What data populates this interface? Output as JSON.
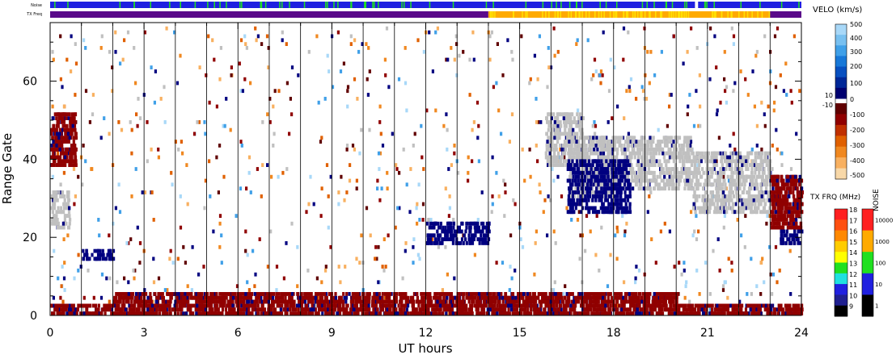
{
  "chart_data": {
    "type": "heatmap",
    "title": "",
    "xlabel": "UT hours",
    "ylabel": "Range Gate",
    "xlim": [
      0,
      24
    ],
    "ylim": [
      0,
      75
    ],
    "x_ticks": [
      "0",
      "3",
      "6",
      "9",
      "12",
      "15",
      "18",
      "21",
      "24"
    ],
    "y_ticks": [
      "0",
      "20",
      "40",
      "60"
    ],
    "top_bars": {
      "noise_label": "Noise",
      "txfreq_label": "TX Freq",
      "txfreq_segments": [
        {
          "start": 0,
          "end": 14,
          "freq_mhz": 10
        },
        {
          "start": 14,
          "end": 23,
          "freq_mhz": 14.5
        },
        {
          "start": 23,
          "end": 24,
          "freq_mhz": 10
        }
      ],
      "noise_level": "10",
      "noise_gaps": [
        20.6,
        20.7
      ]
    },
    "velocity_colorbar": {
      "label": "VELO (km/s)",
      "ticks_pos": [
        "500",
        "400",
        "300",
        "200",
        "100",
        "10",
        "0"
      ],
      "ticks_neg": [
        "-10",
        "-100",
        "-200",
        "-300",
        "-400",
        "-500"
      ],
      "colors_pos": [
        "#a8d8f8",
        "#78c0f0",
        "#40a0e8",
        "#1878d8",
        "#0850c0",
        "#002898",
        "#000070"
      ],
      "colors_neg": [
        "#600000",
        "#900000",
        "#c03000",
        "#e06000",
        "#f08820",
        "#f8b060",
        "#f8d8a8"
      ]
    },
    "txfreq_colorbar": {
      "label": "TX FRQ (MHz)",
      "ticks": [
        "18",
        "17",
        "16",
        "15",
        "14",
        "13",
        "12",
        "11",
        "10",
        "9"
      ],
      "colors": [
        "#ff2020",
        "#ff5010",
        "#ff8800",
        "#ffcc00",
        "#ffff00",
        "#20e020",
        "#20e0e0",
        "#2020e0",
        "#202090",
        "#000000"
      ]
    },
    "noise_colorbar": {
      "label": "NOISE",
      "ticks": [
        "10000",
        "1000",
        "100",
        "10",
        "1"
      ],
      "colors": [
        "#ff2020",
        "#ffaa00",
        "#20e020",
        "#2020e0",
        "#000000"
      ]
    },
    "series": [
      {
        "kind": "ground_scatter",
        "color": "#c0c0c0",
        "regions": [
          {
            "x": [
              0.0,
              0.6
            ],
            "y": [
              22,
              32
            ]
          },
          {
            "x": [
              15.8,
              17.0
            ],
            "y": [
              38,
              52
            ]
          },
          {
            "x": [
              16.5,
              18.0
            ],
            "y": [
              30,
              46
            ]
          },
          {
            "x": [
              17.5,
              20.5
            ],
            "y": [
              32,
              46
            ]
          },
          {
            "x": [
              20.5,
              23.0
            ],
            "y": [
              26,
              42
            ]
          }
        ]
      },
      {
        "kind": "negative_velocity",
        "color": "#900000",
        "regions": [
          {
            "x": [
              0.0,
              24.0
            ],
            "y": [
              0,
              3
            ]
          },
          {
            "x": [
              2.0,
              20.0
            ],
            "y": [
              3,
              6
            ]
          },
          {
            "x": [
              0.0,
              0.8
            ],
            "y": [
              38,
              52
            ]
          },
          {
            "x": [
              23.0,
              24.0
            ],
            "y": [
              22,
              36
            ]
          }
        ]
      },
      {
        "kind": "positive_velocity",
        "color": "#000080",
        "regions": [
          {
            "x": [
              1.0,
              2.0
            ],
            "y": [
              14,
              17
            ]
          },
          {
            "x": [
              12.0,
              14.0
            ],
            "y": [
              18,
              24
            ]
          },
          {
            "x": [
              16.5,
              18.5
            ],
            "y": [
              26,
              40
            ]
          },
          {
            "x": [
              23.3,
              24.0
            ],
            "y": [
              18,
              22
            ]
          }
        ]
      }
    ]
  }
}
